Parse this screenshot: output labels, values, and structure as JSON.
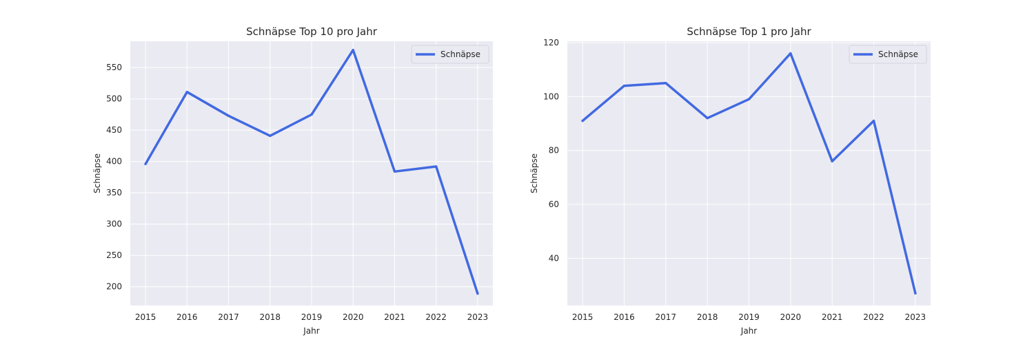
{
  "chart_data": [
    {
      "type": "line",
      "title": "Schnäpse Top 10 pro Jahr",
      "xlabel": "Jahr",
      "ylabel": "Schnäpse",
      "x": [
        "2015",
        "2016",
        "2017",
        "2018",
        "2019",
        "2020",
        "2021",
        "2022",
        "2023"
      ],
      "series": [
        {
          "name": "Schnäpse",
          "values": [
            396,
            511,
            473,
            441,
            475,
            578,
            384,
            392,
            189
          ]
        }
      ],
      "yticks": [
        200,
        250,
        300,
        350,
        400,
        450,
        500,
        550
      ],
      "ylim": [
        170,
        592
      ],
      "grid": true,
      "legend": "top-right",
      "line_color": "#4169e1",
      "background_color": "#eaeaf2"
    },
    {
      "type": "line",
      "title": "Schnäpse Top 1 pro Jahr",
      "xlabel": "Jahr",
      "ylabel": "Schnäpse",
      "x": [
        "2015",
        "2016",
        "2017",
        "2018",
        "2019",
        "2020",
        "2021",
        "2022",
        "2023"
      ],
      "series": [
        {
          "name": "Schnäpse",
          "values": [
            91,
            104,
            105,
            92,
            99,
            116,
            76,
            91,
            27
          ]
        }
      ],
      "yticks": [
        40,
        60,
        80,
        100,
        120
      ],
      "ylim": [
        22.5,
        120.5
      ],
      "grid": true,
      "legend": "top-right",
      "line_color": "#4169e1",
      "background_color": "#eaeaf2"
    }
  ]
}
